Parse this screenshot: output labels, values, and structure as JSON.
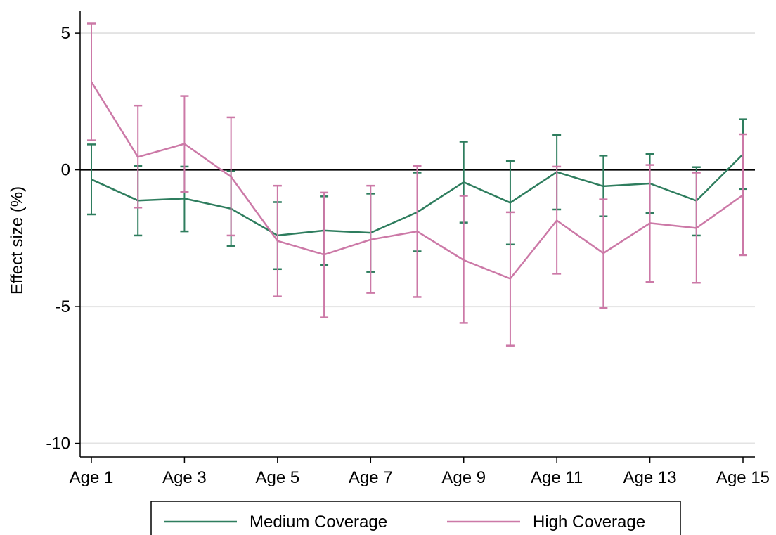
{
  "chart_data": {
    "type": "line",
    "title": "",
    "xlabel": "",
    "ylabel": "Effect size (%)",
    "ylim": [
      -10.5,
      5.8
    ],
    "yticks": [
      5,
      0,
      -5,
      -10
    ],
    "x": [
      1,
      2,
      3,
      4,
      5,
      6,
      7,
      8,
      9,
      10,
      11,
      12,
      13,
      14,
      15
    ],
    "xticks": [
      1,
      3,
      5,
      7,
      9,
      11,
      13,
      15
    ],
    "xtick_labels": [
      "Age 1",
      "Age 3",
      "Age 5",
      "Age 7",
      "Age 9",
      "Age 11",
      "Age 13",
      "Age 15"
    ],
    "grid": true,
    "reference_line_y": 0,
    "legend": {
      "placement": "bottom"
    },
    "series": [
      {
        "name": "Medium Coverage",
        "color": "#2e7d5e",
        "values": [
          -0.35,
          -1.12,
          -1.05,
          -1.42,
          -2.4,
          -2.22,
          -2.3,
          -1.55,
          -0.45,
          -1.2,
          -0.08,
          -0.6,
          -0.5,
          -1.13,
          0.57
        ],
        "ci_low": [
          -1.63,
          -2.4,
          -2.25,
          -2.78,
          -3.63,
          -3.48,
          -3.73,
          -2.98,
          -1.93,
          -2.73,
          -1.45,
          -1.7,
          -1.58,
          -2.4,
          -0.7
        ],
        "ci_high": [
          0.93,
          0.15,
          0.12,
          -0.05,
          -1.18,
          -0.97,
          -0.87,
          -0.1,
          1.03,
          0.32,
          1.27,
          0.52,
          0.58,
          0.1,
          1.85
        ]
      },
      {
        "name": "High Coverage",
        "color": "#cc79a7",
        "values": [
          3.22,
          0.47,
          0.95,
          -0.25,
          -2.6,
          -3.1,
          -2.55,
          -2.25,
          -3.3,
          -3.98,
          -1.85,
          -3.05,
          -1.95,
          -2.13,
          -0.92
        ],
        "ci_low": [
          1.08,
          -1.38,
          -0.8,
          -2.4,
          -4.63,
          -5.4,
          -4.5,
          -4.65,
          -5.6,
          -6.43,
          -3.8,
          -5.05,
          -4.1,
          -4.13,
          -3.12
        ],
        "ci_high": [
          5.35,
          2.35,
          2.7,
          1.92,
          -0.58,
          -0.83,
          -0.58,
          0.15,
          -0.95,
          -1.55,
          0.12,
          -1.08,
          0.18,
          -0.1,
          1.3
        ]
      }
    ]
  }
}
